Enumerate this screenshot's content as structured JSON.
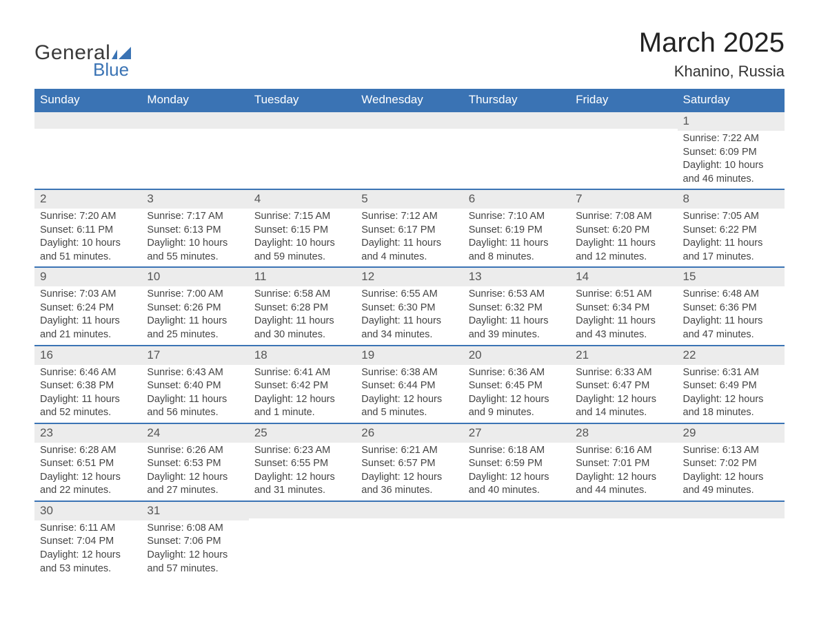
{
  "logo": {
    "text1": "General",
    "text2": "Blue",
    "shape_color": "#3a73b4"
  },
  "title": {
    "month": "March 2025",
    "location": "Khanino, Russia"
  },
  "colors": {
    "header_bg": "#3a73b4",
    "header_text": "#ffffff",
    "daynum_bg": "#ececec",
    "row_border": "#3a73b4",
    "body_text": "#444444"
  },
  "typography": {
    "title_fontsize": 40,
    "location_fontsize": 22,
    "header_fontsize": 17,
    "daynum_fontsize": 17,
    "cell_fontsize": 14.5
  },
  "layout": {
    "columns": 7,
    "rows": 6
  },
  "daynames": [
    "Sunday",
    "Monday",
    "Tuesday",
    "Wednesday",
    "Thursday",
    "Friday",
    "Saturday"
  ],
  "weeks": [
    [
      null,
      null,
      null,
      null,
      null,
      null,
      {
        "n": "1",
        "sunrise": "7:22 AM",
        "sunset": "6:09 PM",
        "daylight": "10 hours and 46 minutes."
      }
    ],
    [
      {
        "n": "2",
        "sunrise": "7:20 AM",
        "sunset": "6:11 PM",
        "daylight": "10 hours and 51 minutes."
      },
      {
        "n": "3",
        "sunrise": "7:17 AM",
        "sunset": "6:13 PM",
        "daylight": "10 hours and 55 minutes."
      },
      {
        "n": "4",
        "sunrise": "7:15 AM",
        "sunset": "6:15 PM",
        "daylight": "10 hours and 59 minutes."
      },
      {
        "n": "5",
        "sunrise": "7:12 AM",
        "sunset": "6:17 PM",
        "daylight": "11 hours and 4 minutes."
      },
      {
        "n": "6",
        "sunrise": "7:10 AM",
        "sunset": "6:19 PM",
        "daylight": "11 hours and 8 minutes."
      },
      {
        "n": "7",
        "sunrise": "7:08 AM",
        "sunset": "6:20 PM",
        "daylight": "11 hours and 12 minutes."
      },
      {
        "n": "8",
        "sunrise": "7:05 AM",
        "sunset": "6:22 PM",
        "daylight": "11 hours and 17 minutes."
      }
    ],
    [
      {
        "n": "9",
        "sunrise": "7:03 AM",
        "sunset": "6:24 PM",
        "daylight": "11 hours and 21 minutes."
      },
      {
        "n": "10",
        "sunrise": "7:00 AM",
        "sunset": "6:26 PM",
        "daylight": "11 hours and 25 minutes."
      },
      {
        "n": "11",
        "sunrise": "6:58 AM",
        "sunset": "6:28 PM",
        "daylight": "11 hours and 30 minutes."
      },
      {
        "n": "12",
        "sunrise": "6:55 AM",
        "sunset": "6:30 PM",
        "daylight": "11 hours and 34 minutes."
      },
      {
        "n": "13",
        "sunrise": "6:53 AM",
        "sunset": "6:32 PM",
        "daylight": "11 hours and 39 minutes."
      },
      {
        "n": "14",
        "sunrise": "6:51 AM",
        "sunset": "6:34 PM",
        "daylight": "11 hours and 43 minutes."
      },
      {
        "n": "15",
        "sunrise": "6:48 AM",
        "sunset": "6:36 PM",
        "daylight": "11 hours and 47 minutes."
      }
    ],
    [
      {
        "n": "16",
        "sunrise": "6:46 AM",
        "sunset": "6:38 PM",
        "daylight": "11 hours and 52 minutes."
      },
      {
        "n": "17",
        "sunrise": "6:43 AM",
        "sunset": "6:40 PM",
        "daylight": "11 hours and 56 minutes."
      },
      {
        "n": "18",
        "sunrise": "6:41 AM",
        "sunset": "6:42 PM",
        "daylight": "12 hours and 1 minute."
      },
      {
        "n": "19",
        "sunrise": "6:38 AM",
        "sunset": "6:44 PM",
        "daylight": "12 hours and 5 minutes."
      },
      {
        "n": "20",
        "sunrise": "6:36 AM",
        "sunset": "6:45 PM",
        "daylight": "12 hours and 9 minutes."
      },
      {
        "n": "21",
        "sunrise": "6:33 AM",
        "sunset": "6:47 PM",
        "daylight": "12 hours and 14 minutes."
      },
      {
        "n": "22",
        "sunrise": "6:31 AM",
        "sunset": "6:49 PM",
        "daylight": "12 hours and 18 minutes."
      }
    ],
    [
      {
        "n": "23",
        "sunrise": "6:28 AM",
        "sunset": "6:51 PM",
        "daylight": "12 hours and 22 minutes."
      },
      {
        "n": "24",
        "sunrise": "6:26 AM",
        "sunset": "6:53 PM",
        "daylight": "12 hours and 27 minutes."
      },
      {
        "n": "25",
        "sunrise": "6:23 AM",
        "sunset": "6:55 PM",
        "daylight": "12 hours and 31 minutes."
      },
      {
        "n": "26",
        "sunrise": "6:21 AM",
        "sunset": "6:57 PM",
        "daylight": "12 hours and 36 minutes."
      },
      {
        "n": "27",
        "sunrise": "6:18 AM",
        "sunset": "6:59 PM",
        "daylight": "12 hours and 40 minutes."
      },
      {
        "n": "28",
        "sunrise": "6:16 AM",
        "sunset": "7:01 PM",
        "daylight": "12 hours and 44 minutes."
      },
      {
        "n": "29",
        "sunrise": "6:13 AM",
        "sunset": "7:02 PM",
        "daylight": "12 hours and 49 minutes."
      }
    ],
    [
      {
        "n": "30",
        "sunrise": "6:11 AM",
        "sunset": "7:04 PM",
        "daylight": "12 hours and 53 minutes."
      },
      {
        "n": "31",
        "sunrise": "6:08 AM",
        "sunset": "7:06 PM",
        "daylight": "12 hours and 57 minutes."
      },
      null,
      null,
      null,
      null,
      null
    ]
  ],
  "labels": {
    "sunrise": "Sunrise: ",
    "sunset": "Sunset: ",
    "daylight": "Daylight: "
  }
}
